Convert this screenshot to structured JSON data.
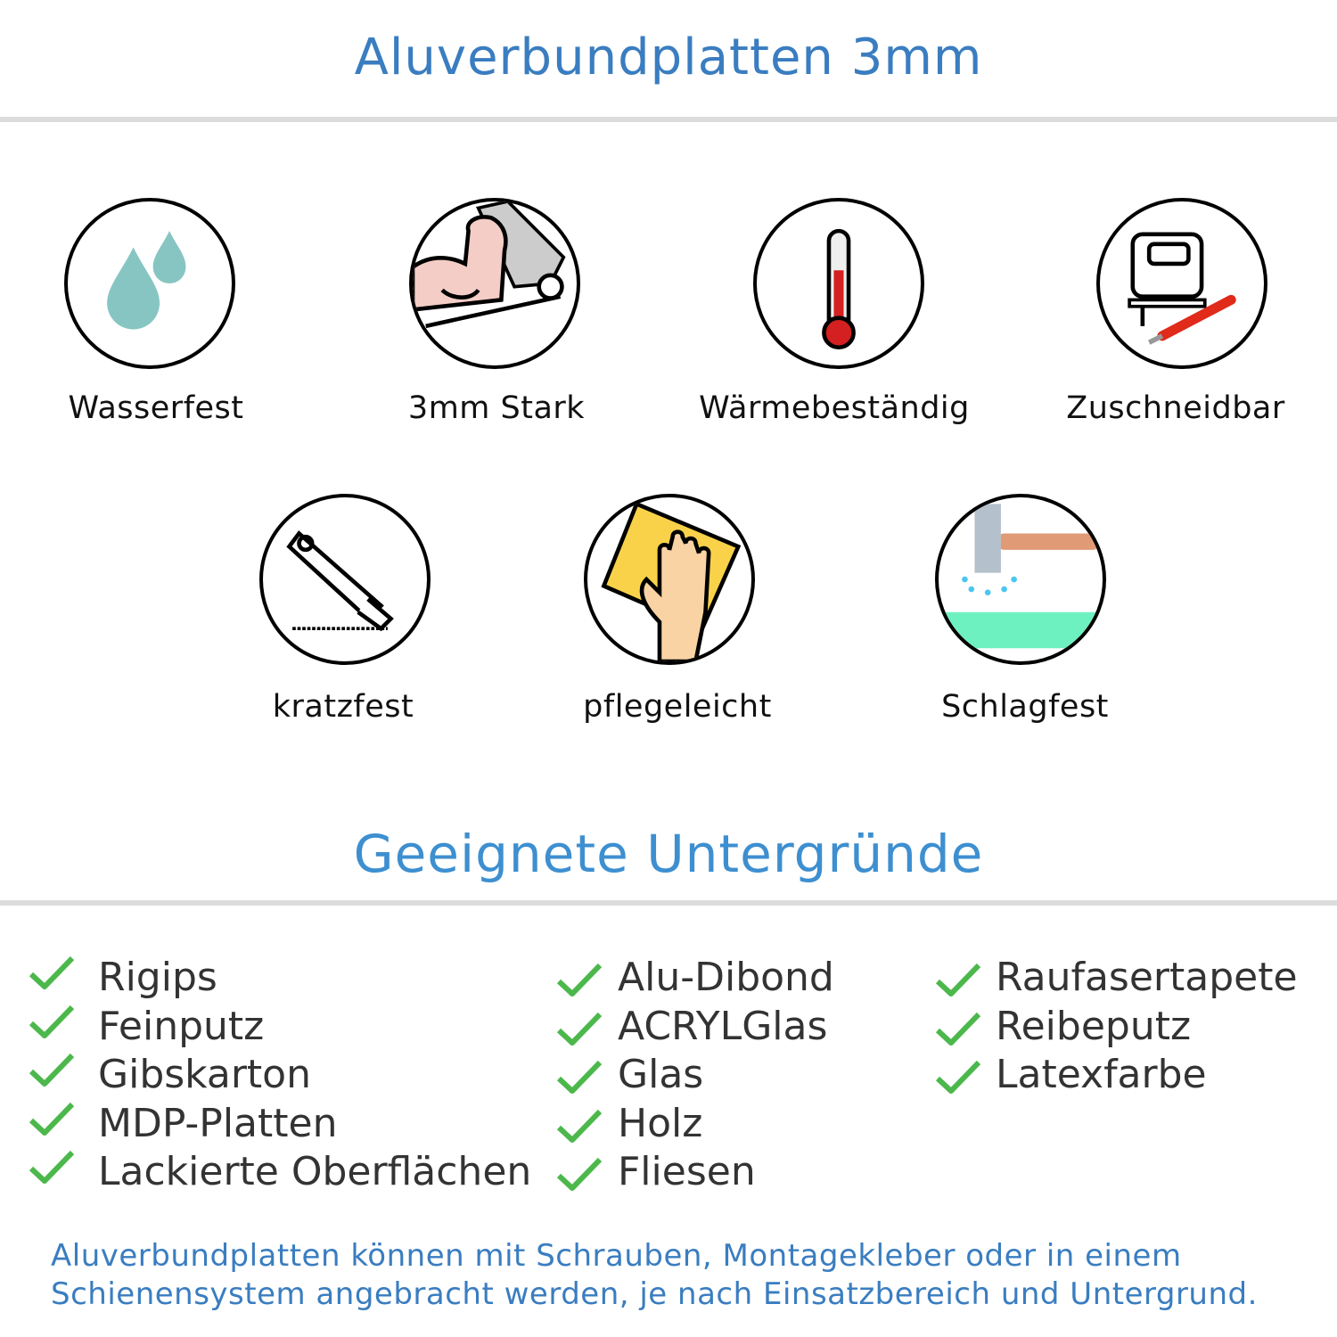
{
  "header": {
    "title": "Aluverbundplatten 3mm"
  },
  "features": [
    {
      "label": "Wasserfest",
      "icon": "water-drops-icon"
    },
    {
      "label": "3mm Stark",
      "icon": "flexed-arm-icon"
    },
    {
      "label": "Wärmebeständig",
      "icon": "thermometer-icon"
    },
    {
      "label": "Zuschneidbar",
      "icon": "jigsaw-cutter-icon"
    },
    {
      "label": "kratzfest",
      "icon": "box-cutter-icon"
    },
    {
      "label": "pflegeleicht",
      "icon": "cleaning-hand-icon"
    },
    {
      "label": "Schlagfest",
      "icon": "hammer-icon"
    }
  ],
  "surfaces": {
    "title": "Geeignete Untergründe",
    "columns": [
      [
        "Rigips",
        "Feinputz",
        "Gibskarton",
        "MDP-Platten",
        "Lackierte Oberflächen"
      ],
      [
        "Alu-Dibond",
        "ACRYLGlas",
        "Glas",
        "Holz",
        "Fliesen"
      ],
      [
        "Raufasertapete",
        "Reibeputz",
        "Latexfarbe"
      ]
    ]
  },
  "footer": {
    "line1": "Aluverbundplatten können mit Schrauben, Montagekleber oder in einem",
    "line2": "Schienensystem angebracht werden, je nach Einsatzbereich und Untergrund."
  },
  "colors": {
    "title": "#3a7dc0",
    "subtitle": "#3d8fd0",
    "check": "#4cb84c",
    "divider": "#dcdcdc"
  }
}
